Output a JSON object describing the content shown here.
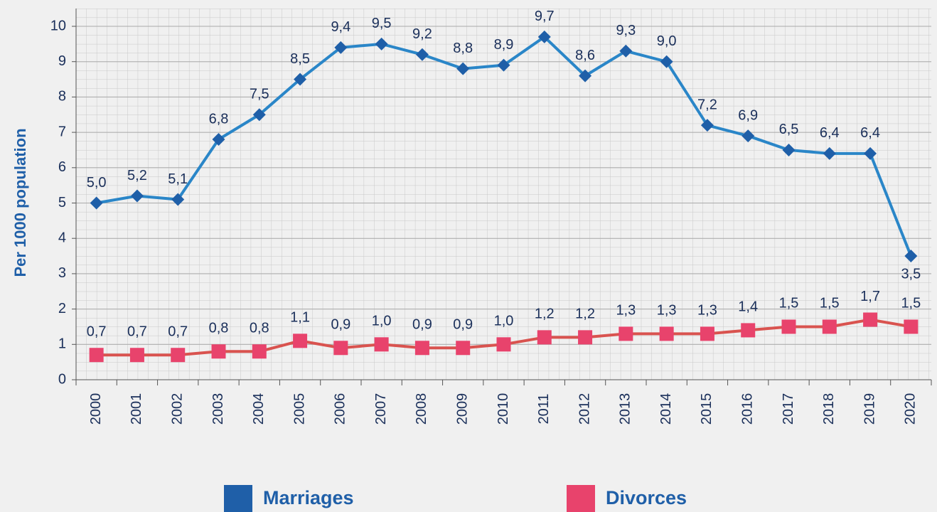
{
  "chart_data": {
    "type": "line",
    "ylabel": "Per 1000 population",
    "categories": [
      "2000",
      "2001",
      "2002",
      "2003",
      "2004",
      "2005",
      "2006",
      "2007",
      "2008",
      "2009",
      "2010",
      "2011",
      "2012",
      "2013",
      "2014",
      "2015",
      "2016",
      "2017",
      "2018",
      "2019",
      "2020"
    ],
    "series": [
      {
        "name": "Marriages",
        "color": "#2a86c8",
        "marker_color": "#1f5fa8",
        "marker": "diamond",
        "values": [
          5.0,
          5.2,
          5.1,
          6.8,
          7.5,
          8.5,
          9.4,
          9.5,
          9.2,
          8.8,
          8.9,
          9.7,
          8.6,
          9.3,
          9.0,
          7.2,
          6.9,
          6.5,
          6.4,
          6.4,
          3.5
        ],
        "value_labels": [
          "5,0",
          "5,2",
          "5,1",
          "6,8",
          "7,5",
          "8,5",
          "9,4",
          "9,5",
          "9,2",
          "8,8",
          "8,9",
          "9,7",
          "8,6",
          "9,3",
          "9,0",
          "7,2",
          "6,9",
          "6,5",
          "6,4",
          "6,4",
          "3,5"
        ]
      },
      {
        "name": "Divorces",
        "color": "#d9534f",
        "marker_color": "#e8436c",
        "marker": "square",
        "values": [
          0.7,
          0.7,
          0.7,
          0.8,
          0.8,
          1.1,
          0.9,
          1.0,
          0.9,
          0.9,
          1.0,
          1.2,
          1.2,
          1.3,
          1.3,
          1.3,
          1.4,
          1.5,
          1.5,
          1.7,
          1.5
        ],
        "value_labels": [
          "0,7",
          "0,7",
          "0,7",
          "0,8",
          "0,8",
          "1,1",
          "0,9",
          "1,0",
          "0,9",
          "0,9",
          "1,0",
          "1,2",
          "1,2",
          "1,3",
          "1,3",
          "1,3",
          "1,4",
          "1,5",
          "1,5",
          "1,7",
          "1,5"
        ]
      }
    ],
    "ylim": [
      0,
      10
    ],
    "yticks": [
      0,
      1,
      2,
      3,
      4,
      5,
      6,
      7,
      8,
      9,
      10
    ],
    "grid": true,
    "legend": "bottom"
  }
}
